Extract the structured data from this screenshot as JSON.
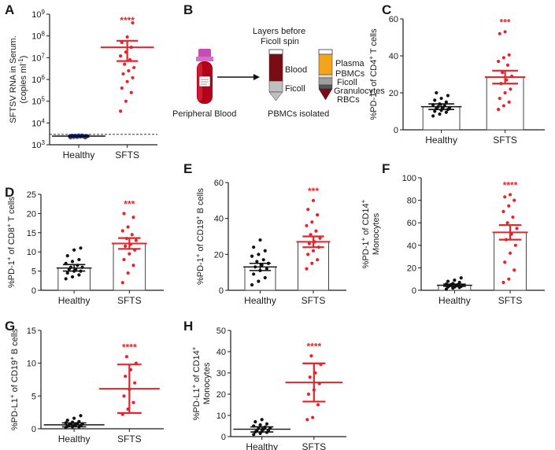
{
  "colors": {
    "control": "#111111",
    "sfts": "#e8232a",
    "control_a": "#1f3fd6",
    "axis": "#1a1a1a"
  },
  "panel_b": {
    "label": "B",
    "tube_label": "Peripheral Blood",
    "title_line1": "Layers before",
    "title_line2": "Ficoll spin",
    "blood": "Blood",
    "ficoll": "Ficoll",
    "plasma": "Plasma",
    "pbmcs": "PBMCs",
    "ficoll2": "Ficoll",
    "granulocytes": "Granulocytes",
    "rbcs": "RBCs",
    "isolated": "PBMCs isolated"
  },
  "chart_data": [
    {
      "id": "A",
      "panel_label": "A",
      "type": "scatter",
      "yscale": "log",
      "ylabel_line1": "SFTSV RNA in Serum.",
      "ylabel_line2_html": "(copies ml",
      "ylabel_line2_sup": "-1",
      "ylabel_line2_end": ")",
      "ylim": [
        1000,
        1000000000
      ],
      "yticks": [
        {
          "v": 1000,
          "b": "10",
          "e": "3"
        },
        {
          "v": 10000,
          "b": "10",
          "e": "4"
        },
        {
          "v": 100000,
          "b": "10",
          "e": "5"
        },
        {
          "v": 1000000,
          "b": "10",
          "e": "6"
        },
        {
          "v": 10000000,
          "b": "10",
          "e": "7"
        },
        {
          "v": 100000000,
          "b": "10",
          "e": "8"
        },
        {
          "v": 1000000000,
          "b": "10",
          "e": "9"
        }
      ],
      "categories": [
        "Healthy",
        "SFTS"
      ],
      "limit_line": 3000,
      "significance": "****",
      "groups": [
        {
          "name": "Healthy",
          "mean": 2500,
          "low": 2300,
          "high": 2700,
          "bar": false,
          "points": [
            2200,
            2300,
            2400,
            2500,
            2600,
            2200,
            2300,
            2400,
            2500,
            2600,
            2700,
            2300,
            2400,
            2500,
            2600,
            2700,
            2400,
            2500
          ]
        },
        {
          "name": "SFTS",
          "mean": 30000000,
          "low": 7000000,
          "high": 60000000,
          "bar": false,
          "points": [
            35000,
            100000,
            250000,
            400000,
            800000,
            1200000,
            1800000,
            2500000,
            3500000,
            5000000,
            8000000,
            12000000,
            18000000,
            30000000,
            50000000,
            90000000,
            400000000
          ]
        }
      ]
    },
    {
      "id": "C",
      "panel_label": "C",
      "type": "bar",
      "ylabel_pre": "%PD-1",
      "ylabel_sup": "+",
      "ylabel_mid": " of CD4",
      "ylabel_sup2": "+",
      "ylabel_post": " T cells",
      "ylim": [
        0,
        60
      ],
      "yticks": [
        0,
        20,
        40,
        60
      ],
      "categories": [
        "Healthy",
        "SFTS"
      ],
      "significance": "***",
      "groups": [
        {
          "name": "Healthy",
          "mean": 12.5,
          "low": 11,
          "high": 14,
          "bar": true,
          "points": [
            7.5,
            8.5,
            9.5,
            10,
            10.5,
            11,
            11.5,
            12,
            12,
            12.5,
            13,
            13.5,
            14,
            15,
            16,
            17,
            18.5,
            20
          ]
        },
        {
          "name": "SFTS",
          "mean": 28.5,
          "low": 25,
          "high": 32,
          "bar": true,
          "points": [
            11,
            13,
            15,
            17,
            20,
            22,
            25,
            27,
            29,
            31,
            35,
            37,
            39,
            40.5,
            52,
            53
          ]
        }
      ]
    },
    {
      "id": "D",
      "panel_label": "D",
      "type": "bar",
      "ylabel_pre": "%PD-1",
      "ylabel_sup": "+",
      "ylabel_mid": " of CD8",
      "ylabel_sup2": "+",
      "ylabel_post": " T cells",
      "ylim": [
        0,
        25
      ],
      "yticks": [
        0,
        5,
        10,
        15,
        20,
        25
      ],
      "categories": [
        "Healthy",
        "SFTS"
      ],
      "significance": "***",
      "groups": [
        {
          "name": "Healthy",
          "mean": 5.8,
          "low": 5.0,
          "high": 6.7,
          "bar": true,
          "points": [
            3,
            3.5,
            4,
            4.5,
            5,
            5,
            5.5,
            5.5,
            6,
            6,
            6.5,
            7,
            7.5,
            8,
            9,
            10.5,
            11
          ]
        },
        {
          "name": "SFTS",
          "mean": 12.2,
          "low": 10.8,
          "high": 13.6,
          "bar": true,
          "points": [
            2,
            4.5,
            6.5,
            8,
            9.5,
            10.5,
            11.5,
            12,
            13,
            13.5,
            14.5,
            15.5,
            16.5,
            19,
            20
          ]
        }
      ]
    },
    {
      "id": "E",
      "panel_label": "E",
      "type": "bar",
      "ylabel_pre": "%PD-1",
      "ylabel_sup": "+",
      "ylabel_mid": " of CD19",
      "ylabel_sup2": "+",
      "ylabel_post": " B cells",
      "ylim": [
        0,
        60
      ],
      "yticks": [
        0,
        20,
        40,
        60
      ],
      "categories": [
        "Healthy",
        "SFTS"
      ],
      "significance": "***",
      "groups": [
        {
          "name": "Healthy",
          "mean": 13,
          "low": 11,
          "high": 15,
          "bar": true,
          "points": [
            3,
            5,
            7,
            9,
            11,
            12,
            13,
            14,
            15,
            16,
            17,
            19,
            20,
            22,
            24,
            28
          ]
        },
        {
          "name": "SFTS",
          "mean": 27,
          "low": 24,
          "high": 30,
          "bar": true,
          "points": [
            12,
            15,
            17,
            20,
            22,
            24,
            26,
            27,
            29,
            31,
            33,
            36,
            38,
            42,
            45,
            50
          ]
        }
      ]
    },
    {
      "id": "F",
      "panel_label": "F",
      "type": "bar",
      "ylabel_pre": "%PD-1",
      "ylabel_sup": "+",
      "ylabel_mid": " of CD14",
      "ylabel_sup2": "+",
      "ylabel_post": "",
      "ylabel_line2": "Monocytes",
      "ylim": [
        0,
        100
      ],
      "yticks": [
        0,
        20,
        40,
        60,
        80,
        100
      ],
      "categories": [
        "Healthy",
        "SFTS"
      ],
      "significance": "****",
      "groups": [
        {
          "name": "Healthy",
          "mean": 4.5,
          "low": 3.5,
          "high": 5.5,
          "bar": true,
          "points": [
            1,
            2,
            2.5,
            3,
            3,
            3.5,
            4,
            4,
            4.5,
            5,
            5,
            5.5,
            6,
            7,
            8,
            9,
            11
          ]
        },
        {
          "name": "SFTS",
          "mean": 51.5,
          "low": 45,
          "high": 58,
          "bar": true,
          "points": [
            7,
            10,
            18,
            25,
            33,
            40,
            45,
            50,
            55,
            60,
            65,
            70,
            75,
            80,
            83,
            85
          ]
        }
      ]
    },
    {
      "id": "G",
      "panel_label": "G",
      "type": "scatter",
      "ylabel_pre": "%PD-L1",
      "ylabel_sup": "+",
      "ylabel_mid": " of CD19",
      "ylabel_sup2": "+",
      "ylabel_post": " B cells",
      "ylim": [
        0,
        15
      ],
      "yticks": [
        0,
        5,
        10,
        15
      ],
      "categories": [
        "Healthy",
        "SFTS"
      ],
      "significance": "****",
      "groups": [
        {
          "name": "Healthy",
          "mean": 0.6,
          "low": 0.3,
          "high": 0.9,
          "bar": false,
          "points": [
            0.2,
            0.3,
            0.3,
            0.4,
            0.5,
            0.5,
            0.6,
            0.6,
            0.7,
            0.7,
            0.8,
            0.9,
            1.0,
            1.1,
            1.3,
            1.6,
            2.0
          ]
        },
        {
          "name": "SFTS",
          "mean": 6.1,
          "low": 2.4,
          "high": 9.8,
          "bar": false,
          "points": [
            2.2,
            3,
            4,
            5,
            6,
            7,
            8,
            9,
            10,
            11
          ]
        }
      ]
    },
    {
      "id": "H",
      "panel_label": "H",
      "type": "scatter",
      "ylabel_pre": "%PD-L1",
      "ylabel_sup": "+",
      "ylabel_mid": " of CD14",
      "ylabel_sup2": "+",
      "ylabel_post": "",
      "ylabel_line2": "Monocytes",
      "ylim": [
        0,
        50
      ],
      "yticks": [
        0,
        10,
        20,
        30,
        40,
        50
      ],
      "categories": [
        "Healthy",
        "SFTS"
      ],
      "significance": "****",
      "groups": [
        {
          "name": "Healthy",
          "mean": 3.5,
          "low": 2.2,
          "high": 4.6,
          "bar": false,
          "points": [
            1,
            1.5,
            2,
            2.2,
            2.5,
            3,
            3,
            3.5,
            4,
            4,
            4.5,
            5,
            5.5,
            6,
            7,
            8
          ]
        },
        {
          "name": "SFTS",
          "mean": 25.5,
          "low": 16.5,
          "high": 34.5,
          "bar": false,
          "points": [
            8,
            9,
            15,
            20,
            22,
            25,
            28,
            30,
            34,
            38
          ]
        }
      ]
    }
  ]
}
